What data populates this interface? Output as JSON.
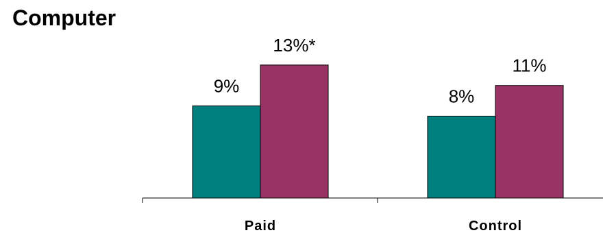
{
  "chart_data": {
    "type": "bar",
    "title": "Computer",
    "categories": [
      "Paid",
      "Control"
    ],
    "series": [
      {
        "values": [
          9,
          8
        ],
        "labels": [
          "9%",
          "8%"
        ],
        "color": "#007f7f"
      },
      {
        "values": [
          13,
          11
        ],
        "labels": [
          "13%*",
          "11%"
        ],
        "color": "#993366"
      }
    ],
    "ylim": [
      0,
      15
    ],
    "grid": false,
    "legend": "none"
  }
}
